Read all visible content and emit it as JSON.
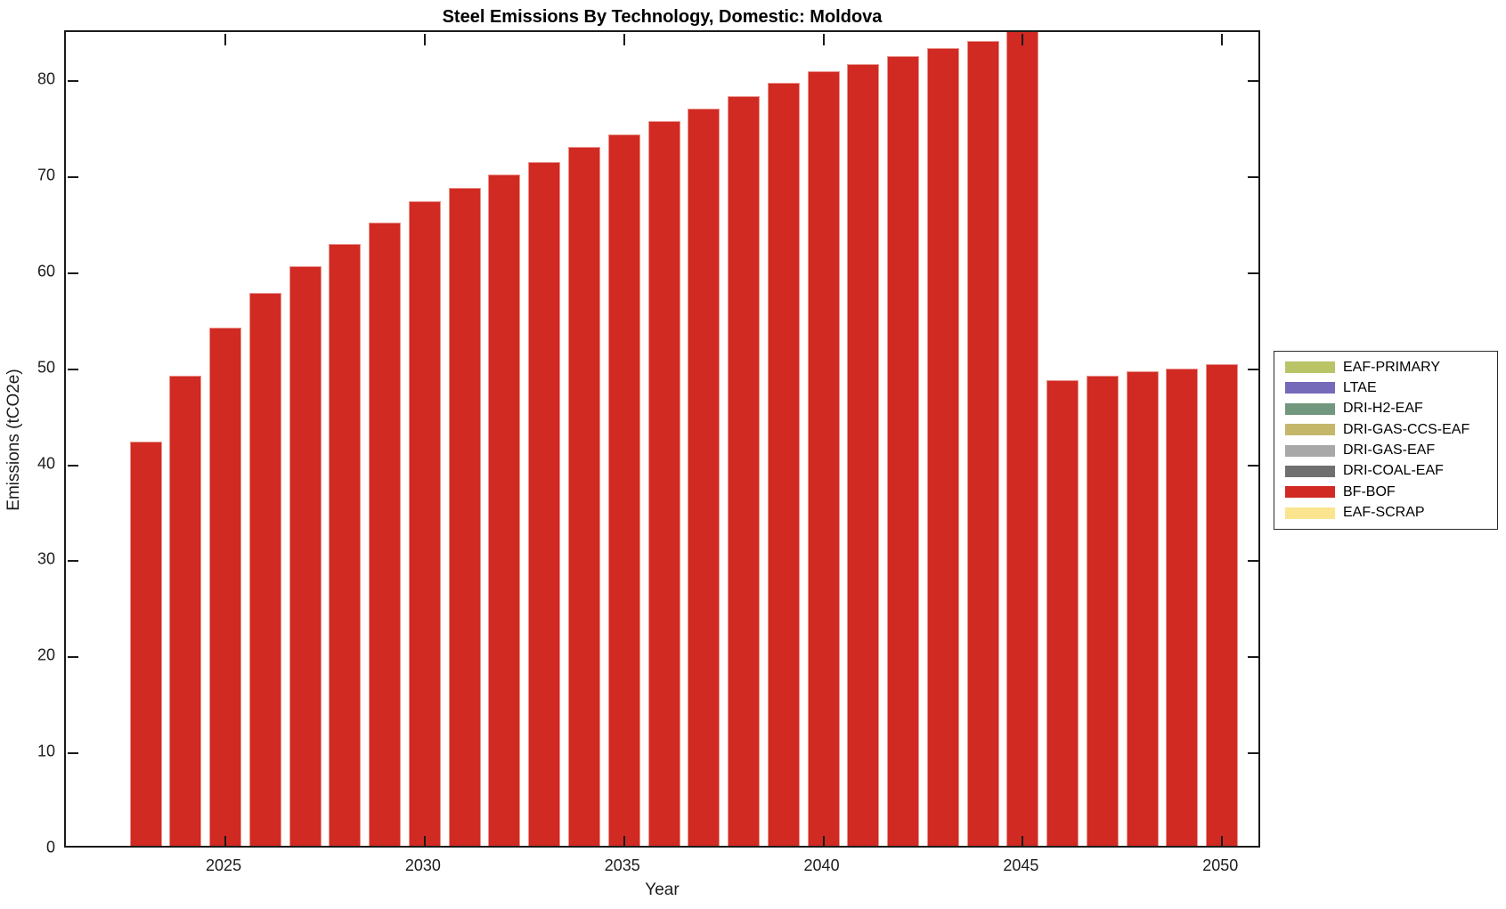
{
  "chart_data": {
    "type": "bar",
    "title": "Steel Emissions By Technology, Domestic: Moldova",
    "xlabel": "Year",
    "ylabel": "Emissions (tCO2e)",
    "grid": false,
    "legend_position": "right-outside",
    "categories": [
      2023,
      2024,
      2025,
      2026,
      2027,
      2028,
      2029,
      2030,
      2031,
      2032,
      2033,
      2034,
      2035,
      2036,
      2037,
      2038,
      2039,
      2040,
      2041,
      2042,
      2043,
      2044,
      2045,
      2046,
      2047,
      2048,
      2049,
      2050
    ],
    "series": [
      {
        "name": "BF-BOF",
        "color": "#d02a22",
        "values": [
          42.5,
          49.3,
          54.3,
          57.9,
          60.7,
          63.0,
          65.3,
          67.5,
          68.9,
          70.3,
          71.6,
          73.1,
          74.4,
          75.8,
          77.1,
          78.4,
          79.8,
          81.0,
          81.8,
          82.6,
          83.4,
          84.2,
          85.4,
          48.9,
          49.3,
          49.8,
          50.1,
          50.5
        ]
      }
    ],
    "xlim": [
      2021.0,
      2051.0
    ],
    "ylim": [
      0,
      85.1
    ],
    "xticks": [
      2025,
      2030,
      2035,
      2040,
      2045,
      2050
    ],
    "yticks": [
      0,
      10,
      20,
      30,
      40,
      50,
      60,
      70,
      80
    ],
    "bar_width_fraction": 0.8,
    "axis_color": "#1a1a1a",
    "legend": [
      {
        "label": "EAF-PRIMARY",
        "color": "#b8c466"
      },
      {
        "label": "LTAE",
        "color": "#7569ba"
      },
      {
        "label": "DRI-H2-EAF",
        "color": "#71977e"
      },
      {
        "label": "DRI-GAS-CCS-EAF",
        "color": "#c4b76a"
      },
      {
        "label": "DRI-GAS-EAF",
        "color": "#a8a8a8"
      },
      {
        "label": "DRI-COAL-EAF",
        "color": "#6f6f6f"
      },
      {
        "label": "BF-BOF",
        "color": "#d02a22"
      },
      {
        "label": "EAF-SCRAP",
        "color": "#fbe48e"
      }
    ]
  }
}
